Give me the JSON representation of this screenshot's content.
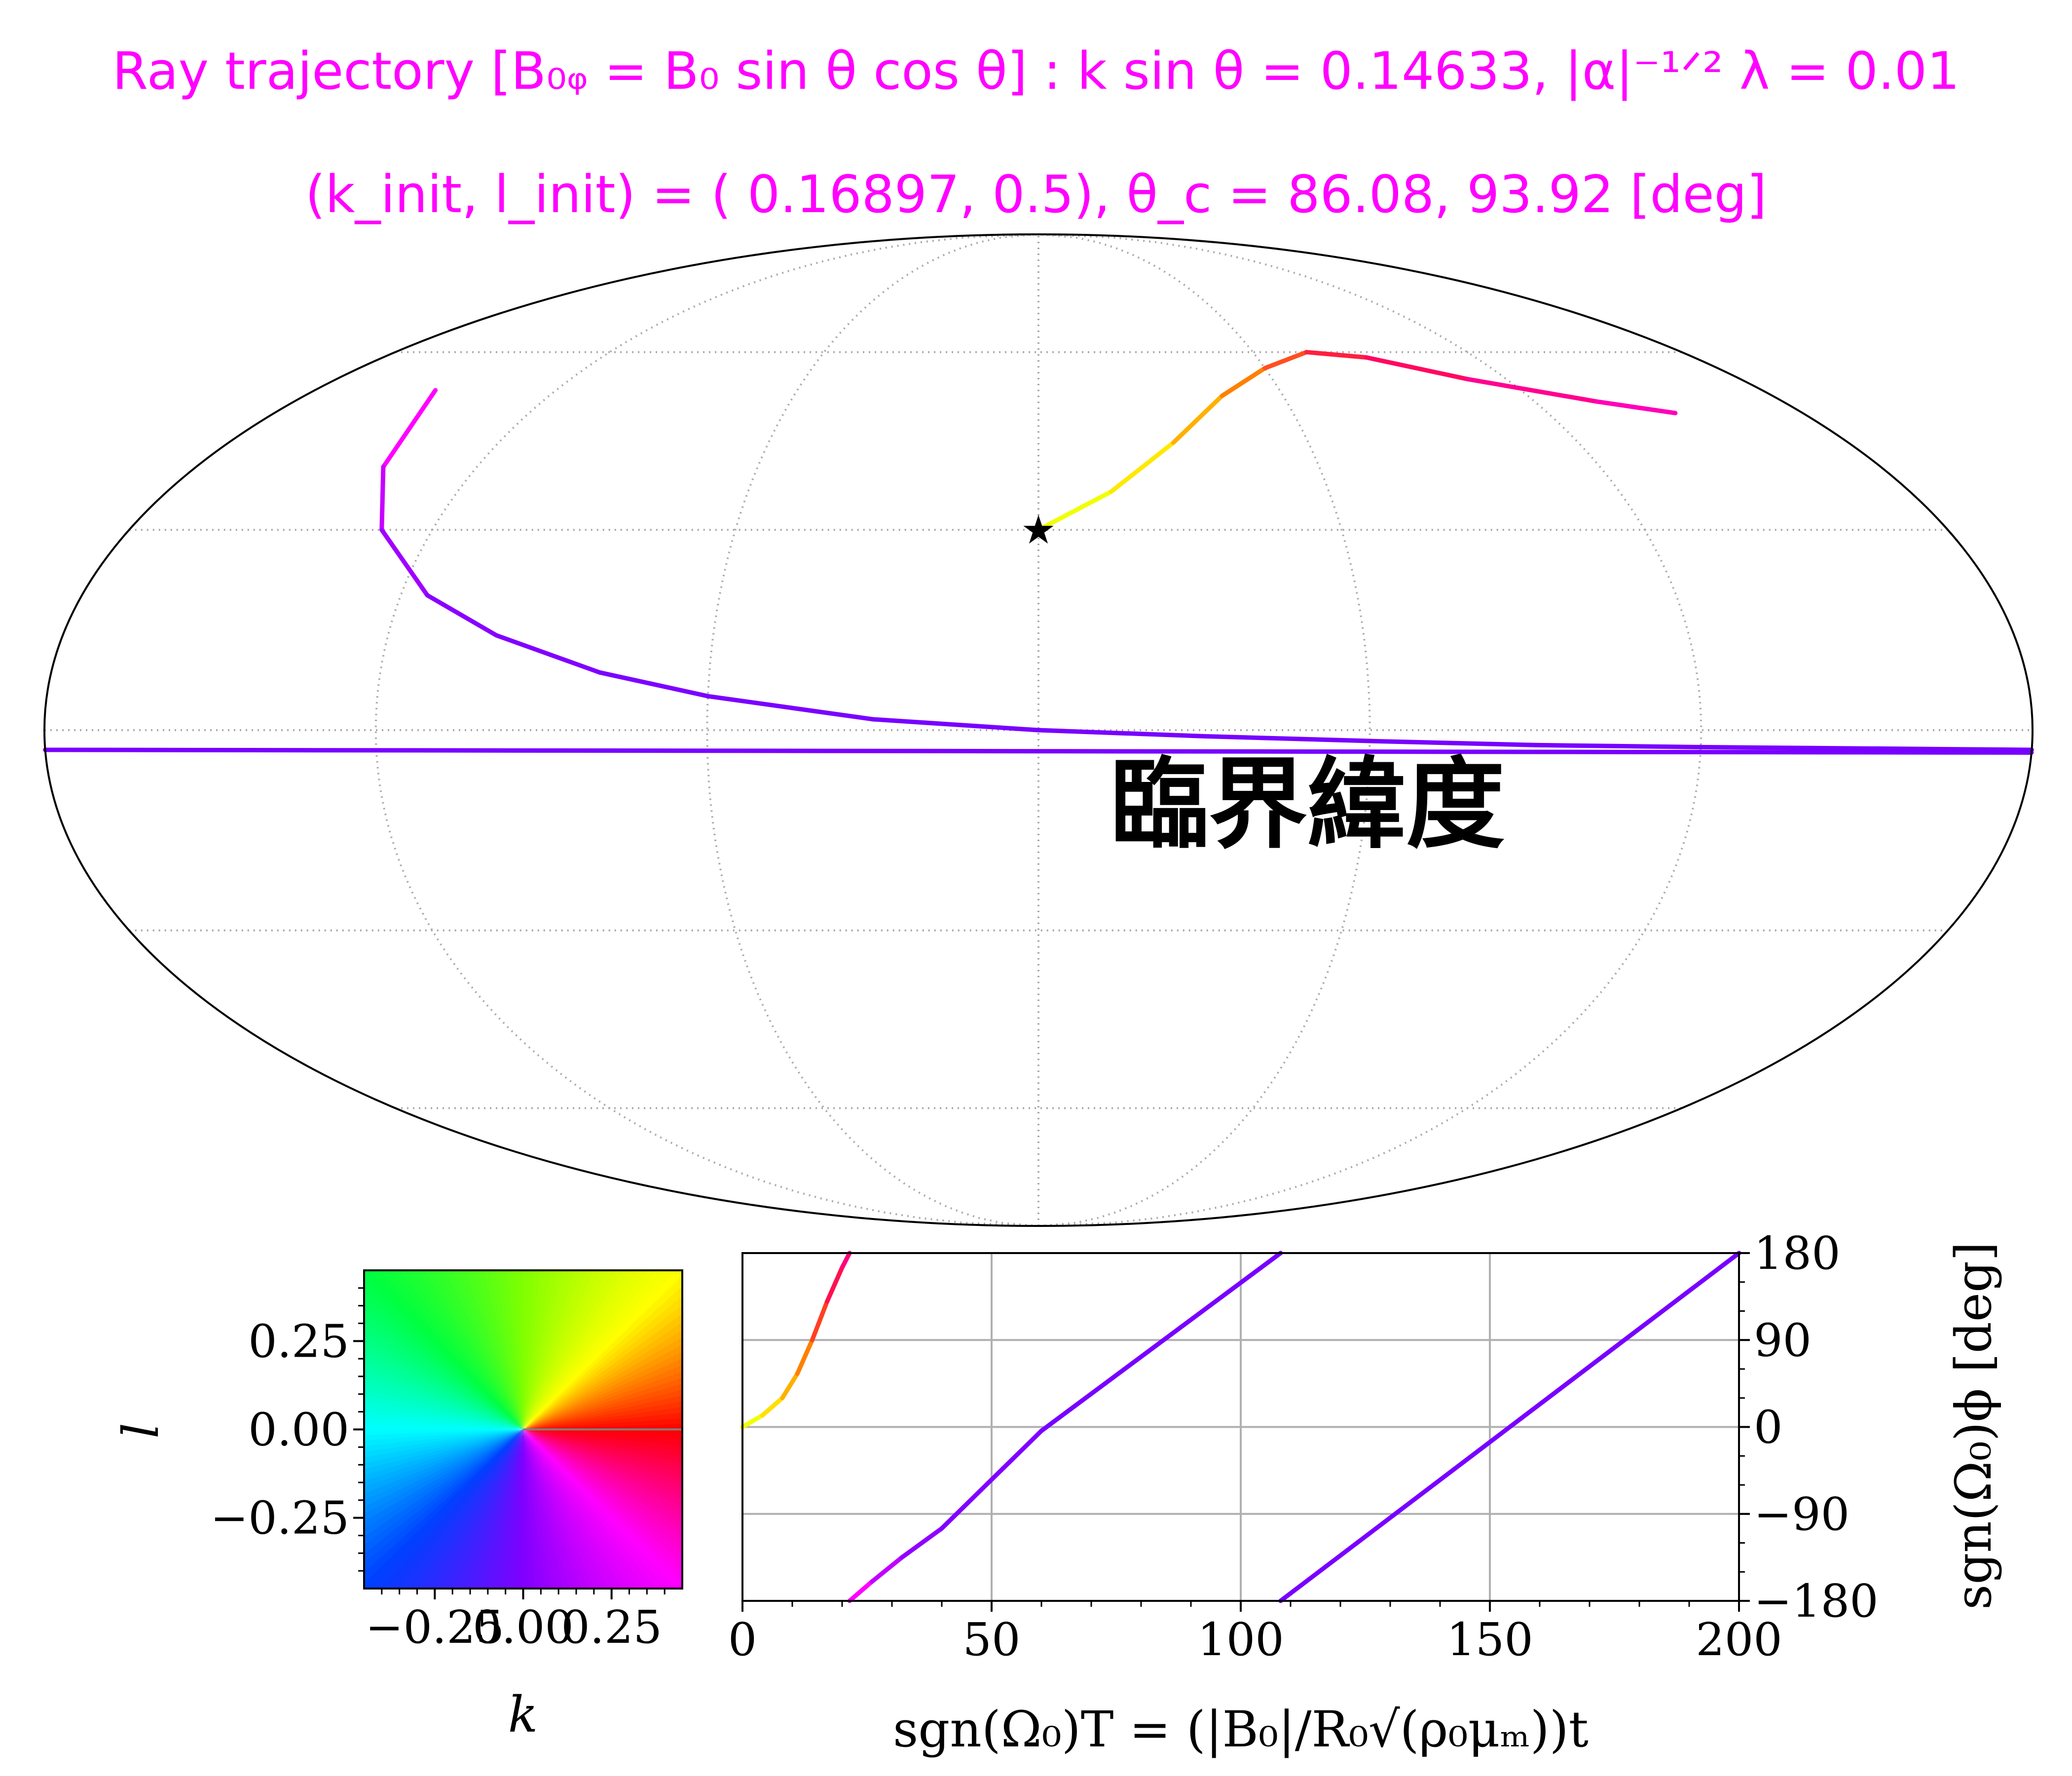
{
  "chart_data": [
    {
      "type": "line",
      "projection": "mollweide",
      "title": "Ray trajectory [B₀ᵩ = B₀ sin θ cos θ] : k sin θ = 0.14633, |α|⁻¹ᐟ² λ = 0.01",
      "subtitle": "(k_init, l_init) = ( 0.16897, 0.5), θ_c = 86.08, 93.92 [deg]",
      "annotation": "臨界緯度",
      "grid": true,
      "start_marker": {
        "lon": 0,
        "lat": 30
      },
      "critical_latitude_deg": -3.92,
      "series": [
        {
          "color_by": "(k, l) direction",
          "points": [
            {
              "lon": 0,
              "lat": 30,
              "color": "#f0ff00"
            },
            {
              "lon": 15,
              "lat": 36,
              "color": "#ffe800"
            },
            {
              "lon": 30,
              "lat": 44,
              "color": "#ffb000"
            },
            {
              "lon": 45,
              "lat": 52,
              "color": "#ff8000"
            },
            {
              "lon": 60,
              "lat": 57,
              "color": "#ff5020"
            },
            {
              "lon": 75,
              "lat": 60,
              "color": "#ff2040"
            },
            {
              "lon": 90,
              "lat": 59,
              "color": "#ff0860"
            },
            {
              "lon": 110,
              "lat": 55,
              "color": "#ff0090"
            },
            {
              "lon": 135,
              "lat": 51,
              "color": "#ff00b8"
            },
            {
              "lon": 150,
              "lat": 49,
              "color": "#ff00d0"
            }
          ]
        },
        {
          "color_by": "(k, l) direction",
          "points": [
            {
              "lon": -150,
              "lat": 53,
              "color": "#ff00ff"
            },
            {
              "lon": -140,
              "lat": 40,
              "color": "#c800ff"
            },
            {
              "lon": -130,
              "lat": 30,
              "color": "#a000ff"
            },
            {
              "lon": -115,
              "lat": 20,
              "color": "#8800ff"
            },
            {
              "lon": -100,
              "lat": 14,
              "color": "#8000ff"
            },
            {
              "lon": -80,
              "lat": 8.5,
              "color": "#7c00ff"
            },
            {
              "lon": -60,
              "lat": 5,
              "color": "#7a00ff"
            },
            {
              "lon": -30,
              "lat": 1.6,
              "color": "#7800ff"
            },
            {
              "lon": 0,
              "lat": 0,
              "color": "#7800ff"
            },
            {
              "lon": 30,
              "lat": -0.9,
              "color": "#7800ff"
            },
            {
              "lon": 60,
              "lat": -1.6,
              "color": "#7800ff"
            },
            {
              "lon": 90,
              "lat": -2.2,
              "color": "#7800ff"
            },
            {
              "lon": 120,
              "lat": -2.5,
              "color": "#7800ff"
            },
            {
              "lon": 150,
              "lat": -2.7,
              "color": "#7800ff"
            },
            {
              "lon": 180,
              "lat": -2.9,
              "color": "#7800ff"
            }
          ]
        },
        {
          "color_by": "(k, l) direction",
          "points": [
            {
              "lon": -180,
              "lat": -2.9,
              "color": "#7800ff"
            },
            {
              "lon": -90,
              "lat": -3.0,
              "color": "#7800ff"
            },
            {
              "lon": 0,
              "lat": -3.1,
              "color": "#7800ff"
            },
            {
              "lon": 90,
              "lat": -3.2,
              "color": "#7800ff"
            },
            {
              "lon": 180,
              "lat": -3.3,
              "color": "#7800ff"
            }
          ]
        }
      ]
    },
    {
      "type": "heatmap",
      "description_colorwheel": true,
      "xlabel": "k",
      "ylabel": "l",
      "xlim": [
        -0.45,
        0.45
      ],
      "ylim": [
        -0.45,
        0.45
      ],
      "x_ticks": [
        -0.25,
        0.0,
        0.25
      ],
      "x_tick_labels": [
        "−0.25",
        "0.00",
        "0.25"
      ],
      "y_ticks": [
        0.25,
        0.0,
        -0.25
      ],
      "y_tick_labels": [
        "0.25",
        "0.00",
        "−0.25"
      ],
      "wheel_colors": [
        {
          "angle_deg": 0,
          "color": "#ff0000"
        },
        {
          "angle_deg": 45,
          "color": "#ffff00"
        },
        {
          "angle_deg": 90,
          "color": "#80ff00"
        },
        {
          "angle_deg": 135,
          "color": "#00ff40"
        },
        {
          "angle_deg": 180,
          "color": "#00ffff"
        },
        {
          "angle_deg": 225,
          "color": "#0040ff"
        },
        {
          "angle_deg": 270,
          "color": "#8000ff"
        },
        {
          "angle_deg": 315,
          "color": "#ff00ff"
        },
        {
          "angle_deg": 360,
          "color": "#ff0000"
        }
      ]
    },
    {
      "type": "line",
      "xlabel": "sgn(Ω₀)T = (|B₀|/R₀√(ρ₀μₘ))t",
      "ylabel": "sgn(Ω₀)ϕ [deg]",
      "xlim": [
        0,
        200
      ],
      "ylim": [
        -180,
        180
      ],
      "x_ticks": [
        0,
        50,
        100,
        150,
        200
      ],
      "x_tick_labels": [
        "0",
        "50",
        "100",
        "150",
        "200"
      ],
      "y_ticks": [
        180,
        90,
        0,
        -90,
        -180
      ],
      "y_tick_labels": [
        "180",
        "90",
        "0",
        "−90",
        "−180"
      ],
      "grid": true,
      "series": [
        {
          "points": [
            {
              "x": 0,
              "y": 0,
              "color": "#f0ff00"
            },
            {
              "x": 4,
              "y": 12,
              "color": "#ffe000"
            },
            {
              "x": 8,
              "y": 30,
              "color": "#ffb000"
            },
            {
              "x": 11,
              "y": 55,
              "color": "#ff8000"
            },
            {
              "x": 14,
              "y": 90,
              "color": "#ff4020"
            },
            {
              "x": 17,
              "y": 130,
              "color": "#ff1050"
            },
            {
              "x": 20,
              "y": 165,
              "color": "#ff0080"
            },
            {
              "x": 21.5,
              "y": 180,
              "color": "#ff0090"
            }
          ]
        },
        {
          "points": [
            {
              "x": 21.5,
              "y": -180,
              "color": "#ff00ff"
            },
            {
              "x": 26,
              "y": -160,
              "color": "#c000ff"
            },
            {
              "x": 32,
              "y": -135,
              "color": "#9000ff"
            },
            {
              "x": 40,
              "y": -105,
              "color": "#8000ff"
            },
            {
              "x": 60,
              "y": -4,
              "color": "#7800ff"
            },
            {
              "x": 108,
              "y": 180,
              "color": "#7800ff"
            }
          ]
        },
        {
          "points": [
            {
              "x": 108,
              "y": -180,
              "color": "#7800ff"
            },
            {
              "x": 200,
              "y": 180,
              "color": "#7800ff"
            }
          ]
        }
      ]
    }
  ]
}
